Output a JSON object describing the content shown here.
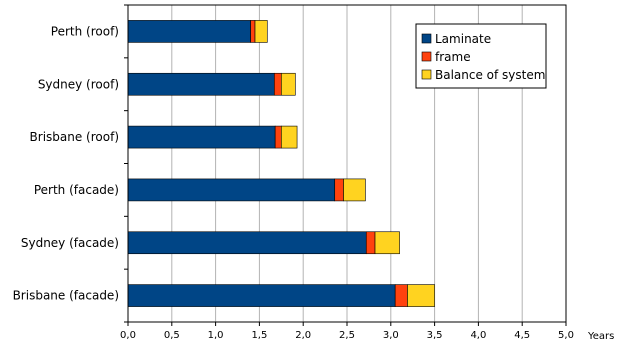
{
  "chart_data": {
    "type": "bar",
    "orientation": "horizontal",
    "stacked": true,
    "categories": [
      "Perth (roof)",
      "Sydney (roof)",
      "Brisbane (roof)",
      "Perth (facade)",
      "Sydney (facade)",
      "Brisbane (facade)"
    ],
    "series": [
      {
        "name": "Laminate",
        "color": "#004586",
        "values": [
          1.4,
          1.67,
          1.68,
          2.36,
          2.72,
          3.05
        ]
      },
      {
        "name": "frame",
        "color": "#ff420e",
        "values": [
          0.05,
          0.08,
          0.07,
          0.1,
          0.1,
          0.14
        ]
      },
      {
        "name": "Balance of system",
        "color": "#ffd320",
        "values": [
          0.14,
          0.16,
          0.18,
          0.25,
          0.28,
          0.31
        ]
      }
    ],
    "xlim": [
      0,
      5.0
    ],
    "x_ticks": [
      "0,0",
      "0,5",
      "1,0",
      "1,5",
      "2,0",
      "2,5",
      "3,0",
      "3,5",
      "4,0",
      "4,5",
      "5,0"
    ],
    "xlabel": "Years",
    "ylabel": "",
    "title": "",
    "grid": "vertical",
    "legend_position": "top-right"
  }
}
